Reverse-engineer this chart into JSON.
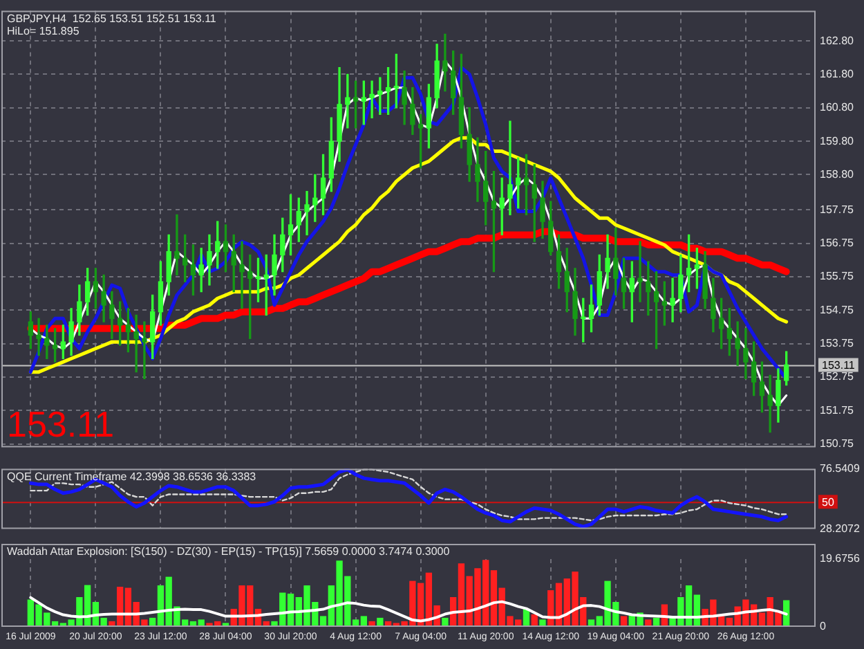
{
  "chart_data": [
    {
      "type": "candlestick",
      "title": "GBPJPY,H4  152.65 153.51 152.51 153.11",
      "subtitle": "HiLo= 151.895",
      "annotations": [
        "153.11"
      ],
      "categories": [
        null,
        null,
        null,
        null,
        null,
        null,
        null,
        null,
        null,
        null,
        null,
        null,
        null,
        null,
        null,
        null,
        null,
        null,
        null,
        null,
        null,
        null,
        null,
        null,
        null,
        null,
        null,
        null,
        null,
        null,
        null,
        null,
        null,
        null,
        null,
        null,
        null,
        null,
        null,
        null,
        null,
        null,
        null,
        null,
        null,
        null,
        null,
        null,
        null,
        null,
        null,
        null,
        null,
        null,
        null,
        null,
        null,
        null,
        null,
        null,
        null,
        null,
        null,
        null,
        null,
        null,
        null,
        null,
        null,
        null,
        null,
        null,
        null,
        null,
        null,
        null,
        null,
        null,
        null,
        null,
        null,
        null,
        null,
        null,
        null,
        null,
        null,
        null,
        null,
        null,
        null,
        null,
        null,
        null
      ],
      "ohlc": [
        [
          154.4,
          154.7,
          153.6,
          154.0
        ],
        [
          154.0,
          154.5,
          153.4,
          153.9
        ],
        [
          153.9,
          154.3,
          153.3,
          153.7
        ],
        [
          153.7,
          154.2,
          153.2,
          153.6
        ],
        [
          153.6,
          154.3,
          153.3,
          153.8
        ],
        [
          153.8,
          154.8,
          153.4,
          154.4
        ],
        [
          154.4,
          155.5,
          154.0,
          155.0
        ],
        [
          155.0,
          156.0,
          154.6,
          155.6
        ],
        [
          155.6,
          156.0,
          154.8,
          155.3
        ],
        [
          155.3,
          155.8,
          154.4,
          154.9
        ],
        [
          154.9,
          155.3,
          153.9,
          154.5
        ],
        [
          154.5,
          155.0,
          153.7,
          154.3
        ],
        [
          154.3,
          154.8,
          153.5,
          154.1
        ],
        [
          154.1,
          154.6,
          152.9,
          153.9
        ],
        [
          153.9,
          154.4,
          152.7,
          153.8
        ],
        [
          153.8,
          155.2,
          153.3,
          154.7
        ],
        [
          154.7,
          156.2,
          154.3,
          155.6
        ],
        [
          155.6,
          157.0,
          155.2,
          156.5
        ],
        [
          156.5,
          157.6,
          155.8,
          156.3
        ],
        [
          156.3,
          157.0,
          155.6,
          156.1
        ],
        [
          156.1,
          156.7,
          155.2,
          155.8
        ],
        [
          155.8,
          156.6,
          155.3,
          156.1
        ],
        [
          156.1,
          157.0,
          155.5,
          156.5
        ],
        [
          156.5,
          157.4,
          156.0,
          156.8
        ],
        [
          156.8,
          157.3,
          155.9,
          156.5
        ],
        [
          156.5,
          157.0,
          155.3,
          156.1
        ],
        [
          156.1,
          156.8,
          154.8,
          155.9
        ],
        [
          155.9,
          156.4,
          153.9,
          155.7
        ],
        [
          155.7,
          156.3,
          155.0,
          155.7
        ],
        [
          155.7,
          156.4,
          154.6,
          155.8
        ],
        [
          155.8,
          157.0,
          155.2,
          156.4
        ],
        [
          156.4,
          157.5,
          155.9,
          157.0
        ],
        [
          157.0,
          158.2,
          156.4,
          157.3
        ],
        [
          157.3,
          158.1,
          156.8,
          157.7
        ],
        [
          157.7,
          158.3,
          157.0,
          157.9
        ],
        [
          157.9,
          158.8,
          157.4,
          158.1
        ],
        [
          158.1,
          159.4,
          157.6,
          158.7
        ],
        [
          158.7,
          160.5,
          158.3,
          159.8
        ],
        [
          159.8,
          162.0,
          159.2,
          160.9
        ],
        [
          160.9,
          161.8,
          160.2,
          161.1
        ],
        [
          161.1,
          161.6,
          160.2,
          161.0
        ],
        [
          161.0,
          161.6,
          160.3,
          161.1
        ],
        [
          161.1,
          161.6,
          160.5,
          161.2
        ],
        [
          161.2,
          161.7,
          160.6,
          161.3
        ],
        [
          161.3,
          162.0,
          160.6,
          161.4
        ],
        [
          161.4,
          162.4,
          160.8,
          161.4
        ],
        [
          161.4,
          161.9,
          160.3,
          160.9
        ],
        [
          160.9,
          161.4,
          160.0,
          160.3
        ],
        [
          160.3,
          160.6,
          159.0,
          160.2
        ],
        [
          160.2,
          161.5,
          159.6,
          161.1
        ],
        [
          161.1,
          162.7,
          160.8,
          162.2
        ],
        [
          162.2,
          163.0,
          161.3,
          161.9
        ],
        [
          161.9,
          162.5,
          160.6,
          161.1
        ],
        [
          161.1,
          162.4,
          159.6,
          160.0
        ],
        [
          160.0,
          160.8,
          158.6,
          159.1
        ],
        [
          159.1,
          159.9,
          158.0,
          158.6
        ],
        [
          158.6,
          159.5,
          157.3,
          158.0
        ],
        [
          158.0,
          158.9,
          155.9,
          157.8
        ],
        [
          157.8,
          158.7,
          157.0,
          158.1
        ],
        [
          158.1,
          160.4,
          157.6,
          158.5
        ],
        [
          158.5,
          159.3,
          157.8,
          158.7
        ],
        [
          158.7,
          159.4,
          157.6,
          158.5
        ],
        [
          158.5,
          159.1,
          156.8,
          158.1
        ],
        [
          158.1,
          158.6,
          156.9,
          157.4
        ],
        [
          157.4,
          158.0,
          156.4,
          156.5
        ],
        [
          156.5,
          157.0,
          155.4,
          155.9
        ],
        [
          155.9,
          156.6,
          154.7,
          155.3
        ],
        [
          155.3,
          156.0,
          154.0,
          154.5
        ],
        [
          154.5,
          155.1,
          153.8,
          154.5
        ],
        [
          154.5,
          155.5,
          154.1,
          154.9
        ],
        [
          154.9,
          156.4,
          154.6,
          155.9
        ],
        [
          155.9,
          157.0,
          155.4,
          156.3
        ],
        [
          156.3,
          157.2,
          155.2,
          155.7
        ],
        [
          155.7,
          156.3,
          154.8,
          155.3
        ],
        [
          155.3,
          156.2,
          154.4,
          155.7
        ],
        [
          155.7,
          156.8,
          155.0,
          155.6
        ],
        [
          155.6,
          156.2,
          154.6,
          155.3
        ],
        [
          155.3,
          155.9,
          153.6,
          155.0
        ],
        [
          155.0,
          155.6,
          154.3,
          154.9
        ],
        [
          154.9,
          155.7,
          154.4,
          155.1
        ],
        [
          155.1,
          156.4,
          154.7,
          155.8
        ],
        [
          155.8,
          157.0,
          155.3,
          156.0
        ],
        [
          156.0,
          156.6,
          155.4,
          156.1
        ],
        [
          156.1,
          156.5,
          154.8,
          155.1
        ],
        [
          155.1,
          155.7,
          154.1,
          154.5
        ],
        [
          154.5,
          155.1,
          153.6,
          154.2
        ],
        [
          154.2,
          154.8,
          153.4,
          153.9
        ],
        [
          153.9,
          154.4,
          153.1,
          153.6
        ],
        [
          153.6,
          154.2,
          152.7,
          153.2
        ],
        [
          153.2,
          153.8,
          152.2,
          152.6
        ],
        [
          152.6,
          153.2,
          151.7,
          152.2
        ],
        [
          152.2,
          152.8,
          151.1,
          151.9
        ],
        [
          151.9,
          153.0,
          151.4,
          152.65
        ],
        [
          152.65,
          153.51,
          152.51,
          153.11
        ]
      ],
      "colors": [
        "#169a16",
        "#169a16",
        "#169a16",
        "#169a16",
        "#33ff33",
        "#33ff33",
        "#33ff33",
        "#33ff33",
        "#169a16",
        "#169a16",
        "#169a16",
        "#169a16",
        "#169a16",
        "#169a16",
        "#169a16",
        "#33ff33",
        "#33ff33",
        "#33ff33",
        "#169a16",
        "#169a16",
        "#169a16",
        "#33ff33",
        "#33ff33",
        "#33ff33",
        "#169a16",
        "#169a16",
        "#169a16",
        "#169a16",
        "#33ff33",
        "#33ff33",
        "#33ff33",
        "#33ff33",
        "#33ff33",
        "#33ff33",
        "#33ff33",
        "#33ff33",
        "#33ff33",
        "#33ff33",
        "#33ff33",
        "#33ff33",
        "#169a16",
        "#33ff33",
        "#33ff33",
        "#33ff33",
        "#33ff33",
        "#33ff33",
        "#169a16",
        "#169a16",
        "#169a16",
        "#33ff33",
        "#33ff33",
        "#169a16",
        "#169a16",
        "#169a16",
        "#169a16",
        "#169a16",
        "#169a16",
        "#169a16",
        "#33ff33",
        "#33ff33",
        "#33ff33",
        "#169a16",
        "#169a16",
        "#169a16",
        "#169a16",
        "#169a16",
        "#169a16",
        "#169a16",
        "#33ff33",
        "#33ff33",
        "#33ff33",
        "#33ff33",
        "#169a16",
        "#169a16",
        "#33ff33",
        "#169a16",
        "#169a16",
        "#169a16",
        "#169a16",
        "#33ff33",
        "#33ff33",
        "#33ff33",
        "#33ff33",
        "#169a16",
        "#169a16",
        "#169a16",
        "#169a16",
        "#169a16",
        "#169a16",
        "#169a16",
        "#169a16",
        "#169a16",
        "#33ff33",
        "#33ff33"
      ],
      "series": [
        {
          "type": "line",
          "color": "#ffffff",
          "values": [
            154.2,
            154.0,
            153.9,
            153.7,
            153.6,
            153.8,
            154.4,
            155.0,
            155.6,
            155.3,
            154.9,
            154.5,
            154.3,
            154.1,
            153.9,
            153.8,
            154.7,
            155.6,
            156.5,
            156.3,
            156.1,
            155.8,
            156.1,
            156.5,
            156.8,
            156.5,
            156.1,
            155.9,
            155.7,
            155.7,
            155.8,
            156.4,
            157.0,
            157.3,
            157.7,
            157.9,
            158.1,
            158.7,
            159.8,
            160.9,
            161.1,
            161.0,
            161.1,
            161.2,
            161.3,
            161.4,
            161.4,
            160.9,
            160.3,
            160.2,
            161.1,
            162.2,
            161.9,
            161.1,
            160.0,
            159.1,
            158.6,
            158.0,
            157.8,
            158.1,
            158.5,
            158.7,
            158.5,
            158.1,
            157.4,
            156.5,
            155.9,
            155.3,
            154.5,
            154.5,
            154.9,
            155.9,
            156.3,
            155.7,
            155.3,
            155.7,
            155.6,
            155.3,
            155.0,
            154.9,
            155.1,
            155.8,
            156.0,
            156.1,
            155.1,
            154.5,
            154.2,
            153.9,
            153.6,
            153.2,
            152.6,
            152.2,
            151.9,
            152.2
          ]
        },
        {
          "type": "line",
          "color": "#1414e6",
          "values": [
            152.9,
            153.5,
            154.2,
            154.5,
            154.5,
            153.9,
            153.6,
            154.1,
            154.5,
            155.0,
            155.5,
            155.4,
            154.7,
            154.2,
            153.7,
            153.3,
            153.9,
            154.6,
            155.2,
            155.5,
            155.8,
            156.4,
            155.9,
            156.0,
            156.2,
            156.6,
            156.8,
            156.7,
            156.5,
            156.0,
            154.9,
            155.4,
            155.9,
            156.4,
            156.8,
            157.1,
            157.4,
            157.8,
            158.4,
            159.1,
            159.7,
            160.3,
            161.1,
            160.7,
            160.7,
            160.9,
            161.7,
            161.7,
            161.2,
            160.4,
            160.3,
            160.6,
            160.9,
            162.0,
            161.8,
            161.1,
            160.3,
            159.3,
            158.9,
            158.7,
            157.7,
            157.7,
            157.7,
            158.1,
            158.7,
            158.1,
            157.5,
            156.9,
            156.3,
            155.5,
            154.6,
            154.6,
            155.3,
            156.3,
            156.3,
            156.3,
            156.1,
            155.9,
            155.9,
            155.8,
            155.8,
            154.7,
            154.9,
            156.1,
            155.9,
            155.8,
            155.3,
            154.8,
            154.4,
            154.0,
            153.6,
            153.3,
            153.0,
            152.7
          ]
        },
        {
          "type": "line",
          "color": "#ffff00",
          "values": [
            152.9,
            152.9,
            153.0,
            153.1,
            153.2,
            153.3,
            153.4,
            153.5,
            153.6,
            153.7,
            153.8,
            153.8,
            153.8,
            153.8,
            153.8,
            153.9,
            154.0,
            154.2,
            154.4,
            154.5,
            154.7,
            154.8,
            154.9,
            155.1,
            155.2,
            155.3,
            155.3,
            155.3,
            155.3,
            155.4,
            155.4,
            155.5,
            155.7,
            155.8,
            156.0,
            156.2,
            156.4,
            156.6,
            156.8,
            157.1,
            157.3,
            157.6,
            157.8,
            158.1,
            158.3,
            158.6,
            158.8,
            159.0,
            159.1,
            159.2,
            159.4,
            159.6,
            159.8,
            159.9,
            159.9,
            159.7,
            159.7,
            159.5,
            159.5,
            159.4,
            159.3,
            159.2,
            159.1,
            159.0,
            158.9,
            158.7,
            158.4,
            158.1,
            157.9,
            157.7,
            157.5,
            157.5,
            157.3,
            157.2,
            157.1,
            157.0,
            156.9,
            156.8,
            156.7,
            156.5,
            156.4,
            156.3,
            156.2,
            156.1,
            155.9,
            155.8,
            155.6,
            155.5,
            155.3,
            155.1,
            154.9,
            154.7,
            154.5,
            154.4
          ]
        },
        {
          "type": "line",
          "color": "#ff0000",
          "values": [
            154.2,
            154.2,
            154.2,
            154.2,
            154.2,
            154.2,
            154.2,
            154.2,
            154.2,
            154.2,
            154.2,
            154.2,
            154.2,
            154.2,
            154.2,
            154.2,
            154.2,
            154.3,
            154.3,
            154.3,
            154.4,
            154.5,
            154.5,
            154.5,
            154.6,
            154.6,
            154.7,
            154.7,
            154.7,
            154.7,
            154.8,
            154.8,
            154.9,
            155.0,
            155.0,
            155.1,
            155.2,
            155.3,
            155.4,
            155.5,
            155.6,
            155.7,
            155.9,
            155.9,
            156.0,
            156.1,
            156.2,
            156.3,
            156.4,
            156.5,
            156.5,
            156.6,
            156.7,
            156.8,
            156.8,
            156.9,
            156.9,
            156.9,
            157.0,
            157.0,
            157.0,
            157.0,
            157.0,
            157.1,
            157.1,
            157.0,
            157.0,
            157.0,
            156.9,
            156.9,
            156.9,
            156.9,
            156.8,
            156.8,
            156.8,
            156.8,
            156.7,
            156.7,
            156.7,
            156.7,
            156.7,
            156.6,
            156.6,
            156.5,
            156.5,
            156.5,
            156.4,
            156.3,
            156.3,
            156.2,
            156.1,
            156.1,
            156.0,
            155.9
          ]
        }
      ],
      "ylim": [
        150.65,
        163.7
      ],
      "yticks": [
        150.75,
        151.75,
        152.75,
        153.75,
        154.75,
        155.75,
        156.75,
        157.75,
        {
          "value": 158.8,
          "label": "158.80"
        },
        {
          "value": 159.8,
          "label": "159.80"
        },
        {
          "value": 160.8,
          "label": "160.80"
        },
        {
          "value": 161.8,
          "label": "161.80"
        },
        {
          "value": 162.8,
          "label": "162.80"
        }
      ],
      "ref_lines": [
        {
          "axis": "y",
          "value": 153.11,
          "label": "153.11",
          "color": "#c4c4c4"
        }
      ],
      "grid": true,
      "tick_labels": "y"
    },
    {
      "type": "line",
      "title": "QQE Current Timeframe 42.3998 38.6536 36.3383",
      "categories": [
        null,
        null,
        null,
        null,
        null,
        null,
        null,
        null,
        null,
        null,
        null,
        null,
        null,
        null,
        null,
        null,
        null,
        null,
        null,
        null,
        null,
        null,
        null,
        null,
        null,
        null,
        null,
        null,
        null,
        null,
        null,
        null,
        null,
        null,
        null,
        null,
        null,
        null,
        null,
        null,
        null,
        null,
        null,
        null,
        null,
        null,
        null,
        null,
        null,
        null,
        null,
        null,
        null,
        null,
        null,
        null,
        null,
        null,
        null,
        null,
        null,
        null,
        null,
        null,
        null,
        null,
        null,
        null,
        null,
        null,
        null,
        null,
        null,
        null,
        null,
        null,
        null,
        null,
        null,
        null,
        null,
        null,
        null,
        null,
        null,
        null,
        null,
        null,
        null,
        null,
        null,
        null,
        null,
        null
      ],
      "series": [
        {
          "color": "#1414ff",
          "values": [
            65,
            64,
            64,
            60,
            57,
            58,
            60,
            64,
            68,
            65,
            62,
            55,
            50,
            46,
            49,
            54,
            59,
            63,
            62,
            60,
            58,
            58,
            60,
            62,
            62,
            59,
            53,
            47,
            47,
            48,
            50,
            55,
            61,
            62,
            62,
            63,
            64,
            69,
            74,
            76,
            72,
            69,
            68,
            67,
            67,
            66,
            65,
            60,
            55,
            49,
            57,
            60,
            58,
            54,
            49,
            44,
            41,
            39,
            35,
            34,
            38,
            42,
            45,
            44,
            43,
            40,
            36,
            32,
            30,
            32,
            38,
            44,
            44,
            42,
            44,
            46,
            45,
            43,
            42,
            41,
            47,
            51,
            54,
            50,
            44,
            43,
            42,
            41,
            40,
            39,
            38,
            36,
            35,
            38
          ]
        },
        {
          "color": "#d8d8d8",
          "line_style": "dashed",
          "values": [
            59,
            59,
            59,
            65,
            65,
            64,
            64,
            62,
            62,
            64,
            66,
            61,
            56,
            54,
            54,
            47,
            54,
            56,
            56,
            56,
            56,
            56,
            56,
            56,
            56,
            56,
            55,
            54,
            54,
            54,
            54,
            51,
            53,
            57,
            57,
            58,
            58,
            60,
            69,
            72,
            74,
            76,
            76,
            75,
            74,
            72,
            70,
            68,
            62,
            57,
            54,
            52,
            52,
            52,
            50,
            48,
            44,
            41,
            39,
            38,
            36,
            36,
            36,
            37,
            37,
            37,
            37,
            37,
            36,
            35,
            36,
            38,
            39,
            39,
            39,
            39,
            39,
            39,
            40,
            40,
            41,
            43,
            44,
            48,
            51,
            51,
            49,
            48,
            47,
            45,
            44,
            42,
            40,
            40
          ]
        }
      ],
      "ylim": [
        28.2072,
        76.5409
      ],
      "yticks": [
        28.2072,
        76.5409
      ],
      "ref_lines": [
        {
          "axis": "y",
          "value": 50,
          "label": "50",
          "color": "#d01010"
        }
      ],
      "grid": "x",
      "tick_labels": "y"
    },
    {
      "type": "bar",
      "title": "Waddah Attar Explosion: [S(150) - DZ(30) - EP(15) - TP(15)] 7.5659 0.0000 3.7474 0.3000",
      "categories": [
        "16 Jul 2009",
        null,
        null,
        null,
        null,
        null,
        null,
        null,
        "20 Jul 20:00",
        null,
        null,
        null,
        null,
        null,
        null,
        null,
        "23 Jul 12:00",
        null,
        null,
        null,
        null,
        null,
        null,
        null,
        "28 Jul 04:00",
        null,
        null,
        null,
        null,
        null,
        null,
        null,
        "30 Jul 20:00",
        null,
        null,
        null,
        null,
        null,
        null,
        null,
        "4 Aug 12:00",
        null,
        null,
        null,
        null,
        null,
        null,
        null,
        "7 Aug 04:00",
        null,
        null,
        null,
        null,
        null,
        null,
        null,
        "11 Aug 20:00",
        null,
        null,
        null,
        null,
        null,
        null,
        null,
        "14 Aug 12:00",
        null,
        null,
        null,
        null,
        null,
        null,
        null,
        "19 Aug 04:00",
        null,
        null,
        null,
        null,
        null,
        null,
        null,
        "21 Aug 20:00",
        null,
        null,
        null,
        null,
        null,
        null,
        null,
        "26 Aug 12:00",
        null,
        null,
        null,
        null,
        null
      ],
      "series": [
        {
          "colors": [
            "#33ff33",
            "#33ff33",
            "#33ff33",
            "#33ff33",
            "#33ff33",
            "#33ff33",
            "#33ff33",
            "#33ff33",
            "#33ff33",
            "#33ff33",
            "#ff2020",
            "#ff2020",
            "#ff2020",
            "#ff2020",
            "#ff2020",
            "#33ff33",
            "#33ff33",
            "#33ff33",
            "#33ff33",
            "#33ff33",
            "#33ff33",
            "#33ff33",
            "#ff2020",
            "#ff2020",
            "#33ff33",
            "#ff2020",
            "#ff2020",
            "#ff2020",
            "#ff2020",
            "#ff2020",
            "#33ff33",
            "#33ff33",
            "#33ff33",
            "#33ff33",
            "#33ff33",
            "#33ff33",
            "#33ff33",
            "#33ff33",
            "#33ff33",
            "#33ff33",
            "#33ff33",
            "#33ff33",
            "#ff2020",
            "#33ff33",
            "#ff2020",
            "#ff2020",
            "#ff2020",
            "#ff2020",
            "#ff2020",
            "#ff2020",
            "#ff2020",
            "#33ff33",
            "#ff2020",
            "#ff2020",
            "#ff2020",
            "#ff2020",
            "#ff2020",
            "#ff2020",
            "#ff2020",
            "#ff2020",
            "#ff2020",
            "#33ff33",
            "#ff2020",
            "#33ff33",
            "#ff2020",
            "#ff2020",
            "#ff2020",
            "#ff2020",
            "#ff2020",
            "#33ff33",
            "#33ff33",
            "#33ff33",
            "#33ff33",
            "#ff2020",
            "#33ff33",
            "#33ff33",
            "#ff2020",
            "#33ff33",
            "#ff2020",
            "#33ff33",
            "#33ff33",
            "#33ff33",
            "#33ff33",
            "#ff2020",
            "#ff2020",
            "#ff2020",
            "#ff2020",
            "#ff2020",
            "#ff2020",
            "#ff2020",
            "#ff2020",
            "#ff2020",
            "#ff2020",
            "#33ff33"
          ],
          "values": [
            7.8,
            6.4,
            4.0,
            1.5,
            1.0,
            2.0,
            8.5,
            12.0,
            7.1,
            2.5,
            1.5,
            11.5,
            11.2,
            7.1,
            2.0,
            2.5,
            11.9,
            14.4,
            5.8,
            2.0,
            1.5,
            2.0,
            1.0,
            1.5,
            1.0,
            5.1,
            11.9,
            11.9,
            5.1,
            1.5,
            1.5,
            9.8,
            9.5,
            8.5,
            11.9,
            7.1,
            3.0,
            11.9,
            19.1,
            14.6,
            2.0,
            3.0,
            1.5,
            2.5,
            1.5,
            1.0,
            1.5,
            13.2,
            12.6,
            15.6,
            6.1,
            2.5,
            8.5,
            18.3,
            14.6,
            16.9,
            19.3,
            16.3,
            11.2,
            3.0,
            2.0,
            5.1,
            3.5,
            2.0,
            10.5,
            12.6,
            13.9,
            15.9,
            8.5,
            2.0,
            3.0,
            13.2,
            7.1,
            3.0,
            3.5,
            4.0,
            2.0,
            2.5,
            6.4,
            3.0,
            8.5,
            11.9,
            9.2,
            5.1,
            7.8,
            3.0,
            2.5,
            5.8,
            7.8,
            6.4,
            4.0,
            8.5,
            4.4,
            7.6
          ]
        },
        {
          "type": "line",
          "color": "#ffffff",
          "values": [
            8.5,
            7.0,
            5.5,
            4.4,
            3.5,
            3.1,
            2.9,
            3.0,
            3.4,
            3.6,
            3.7,
            3.7,
            3.7,
            3.7,
            3.9,
            4.2,
            4.5,
            4.8,
            5.0,
            5.1,
            5.0,
            5.0,
            4.5,
            3.8,
            3.1,
            3.1,
            3.1,
            3.2,
            3.3,
            3.6,
            3.8,
            4.0,
            4.3,
            4.4,
            4.6,
            4.8,
            5.1,
            5.9,
            6.4,
            7.0,
            6.8,
            6.3,
            6.0,
            5.9,
            5.0,
            4.0,
            3.0,
            2.0,
            1.7,
            2.1,
            2.8,
            3.7,
            4.2,
            4.4,
            4.6,
            5.3,
            6.1,
            7.0,
            7.3,
            6.7,
            5.9,
            5.3,
            4.1,
            2.9,
            2.7,
            2.7,
            3.7,
            5.1,
            6.1,
            6.2,
            5.9,
            5.1,
            4.4,
            4.0,
            3.5,
            3.3,
            3.2,
            3.1,
            3.0,
            2.8,
            2.8,
            2.8,
            2.8,
            3.0,
            3.1,
            3.4,
            3.7,
            3.9,
            4.3,
            4.5,
            4.8,
            5.0,
            4.5,
            3.7
          ]
        }
      ],
      "ylim": [
        0,
        19.6756
      ],
      "yticks": [
        0,
        19.6756
      ],
      "grid": "x"
    }
  ]
}
